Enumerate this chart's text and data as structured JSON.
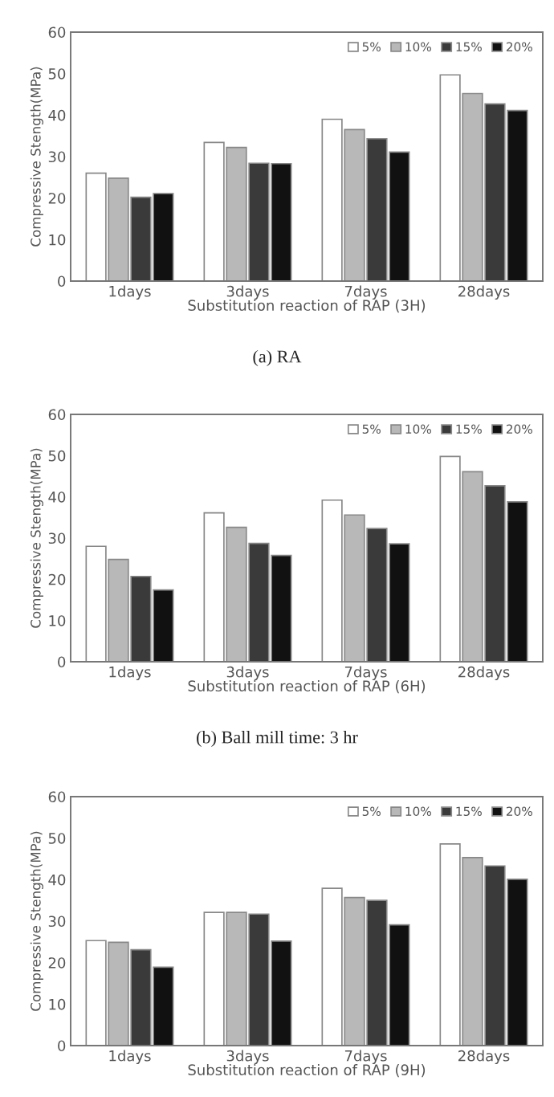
{
  "chart_data": [
    {
      "type": "bar",
      "xlabel": "Substitution reaction of RAP (3H)",
      "ylabel": "Compressive Stength(MPa)",
      "categories": [
        "1days",
        "3days",
        "7days",
        "28days"
      ],
      "ylim": [
        0,
        60
      ],
      "yticks": [
        0,
        10,
        20,
        30,
        40,
        50,
        60
      ],
      "legend": "top right",
      "annotations": [
        "(a) RA"
      ],
      "series": [
        {
          "name": "5%",
          "color": "#ffffff",
          "values": [
            26,
            33.4,
            39,
            49.7
          ]
        },
        {
          "name": "10%",
          "color": "#b8b8b8",
          "values": [
            24.8,
            32.2,
            36.5,
            45.2
          ]
        },
        {
          "name": "15%",
          "color": "#3a3a3a",
          "values": [
            20.2,
            28.4,
            34.3,
            42.7
          ]
        },
        {
          "name": "20%",
          "color": "#111111",
          "values": [
            21.1,
            28.3,
            31.1,
            41.1
          ]
        }
      ]
    },
    {
      "type": "bar",
      "xlabel": "Substitution reaction of RAP (6H)",
      "ylabel": "Compressive Stength(MPa)",
      "categories": [
        "1days",
        "3days",
        "7days",
        "28days"
      ],
      "ylim": [
        0,
        60
      ],
      "yticks": [
        0,
        10,
        20,
        30,
        40,
        50,
        60
      ],
      "legend": "top right",
      "annotations": [
        "(b) Ball mill time: 3 hr"
      ],
      "series": [
        {
          "name": "5%",
          "color": "#ffffff",
          "values": [
            28,
            36.1,
            39.2,
            49.8
          ]
        },
        {
          "name": "10%",
          "color": "#b8b8b8",
          "values": [
            24.8,
            32.6,
            35.6,
            46.1
          ]
        },
        {
          "name": "15%",
          "color": "#3a3a3a",
          "values": [
            20.7,
            28.7,
            32.3,
            42.7
          ]
        },
        {
          "name": "20%",
          "color": "#111111",
          "values": [
            17.4,
            25.8,
            28.6,
            38.8
          ]
        }
      ]
    },
    {
      "type": "bar",
      "xlabel": "Substitution reaction of RAP (9H)",
      "ylabel": "Compressive Stength(MPa)",
      "categories": [
        "1days",
        "3days",
        "7days",
        "28days"
      ],
      "ylim": [
        0,
        60
      ],
      "yticks": [
        0,
        10,
        20,
        30,
        40,
        50,
        60
      ],
      "legend": "top right",
      "series": [
        {
          "name": "5%",
          "color": "#ffffff",
          "values": [
            25.3,
            32.1,
            37.9,
            48.6
          ]
        },
        {
          "name": "10%",
          "color": "#b8b8b8",
          "values": [
            24.9,
            32.1,
            35.7,
            45.3
          ]
        },
        {
          "name": "15%",
          "color": "#3a3a3a",
          "values": [
            23.1,
            31.7,
            35,
            43.3
          ]
        },
        {
          "name": "20%",
          "color": "#111111",
          "values": [
            18.9,
            25.2,
            29.1,
            40.1
          ]
        }
      ]
    }
  ]
}
